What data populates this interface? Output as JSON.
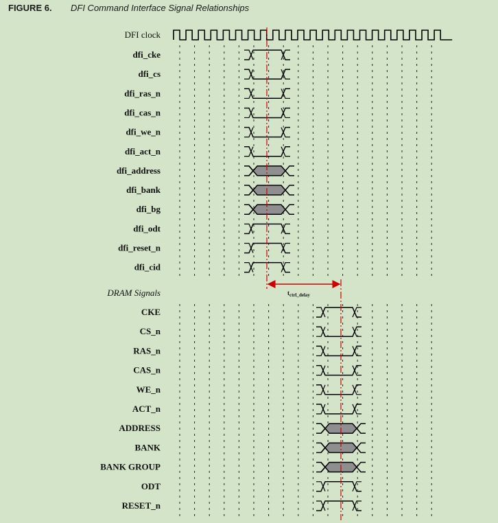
{
  "figure": {
    "number": "FIGURE 6.",
    "title": "DFI Command Interface Signal Relationships"
  },
  "clock": {
    "label": "DFI clock",
    "cycles": 22
  },
  "dfi_signals": [
    {
      "label": "dfi_cke",
      "kind": "pulse"
    },
    {
      "label": "dfi_cs",
      "kind": "dip"
    },
    {
      "label": "dfi_ras_n",
      "kind": "dip"
    },
    {
      "label": "dfi_cas_n",
      "kind": "dip"
    },
    {
      "label": "dfi_we_n",
      "kind": "dip"
    },
    {
      "label": "dfi_act_n",
      "kind": "dip"
    },
    {
      "label": "dfi_address",
      "kind": "bus"
    },
    {
      "label": "dfi_bank",
      "kind": "bus"
    },
    {
      "label": "dfi_bg",
      "kind": "bus"
    },
    {
      "label": "dfi_odt",
      "kind": "pulse"
    },
    {
      "label": "dfi_reset_n",
      "kind": "pulse"
    },
    {
      "label": "dfi_cid",
      "kind": "pulse"
    }
  ],
  "dram_section_label": "DRAM Signals",
  "dram_signals": [
    {
      "label": "CKE",
      "kind": "pulse"
    },
    {
      "label": "CS_n",
      "kind": "dip"
    },
    {
      "label": "RAS_n",
      "kind": "dip"
    },
    {
      "label": "CAS_n",
      "kind": "dip"
    },
    {
      "label": "WE_n",
      "kind": "dip"
    },
    {
      "label": "ACT_n",
      "kind": "dip"
    },
    {
      "label": "ADDRESS",
      "kind": "bus"
    },
    {
      "label": "BANK",
      "kind": "bus"
    },
    {
      "label": "BANK GROUP",
      "kind": "bus"
    },
    {
      "label": "ODT",
      "kind": "pulse"
    },
    {
      "label": "RESET_n",
      "kind": "pulse"
    }
  ],
  "delay": {
    "base": "t",
    "subscript": "ctrl_delay"
  },
  "colors": {
    "background": "#d3e4c8",
    "waveform": "#000000",
    "bus_fill": "#8f8f8f",
    "marker": "#cc0000"
  }
}
